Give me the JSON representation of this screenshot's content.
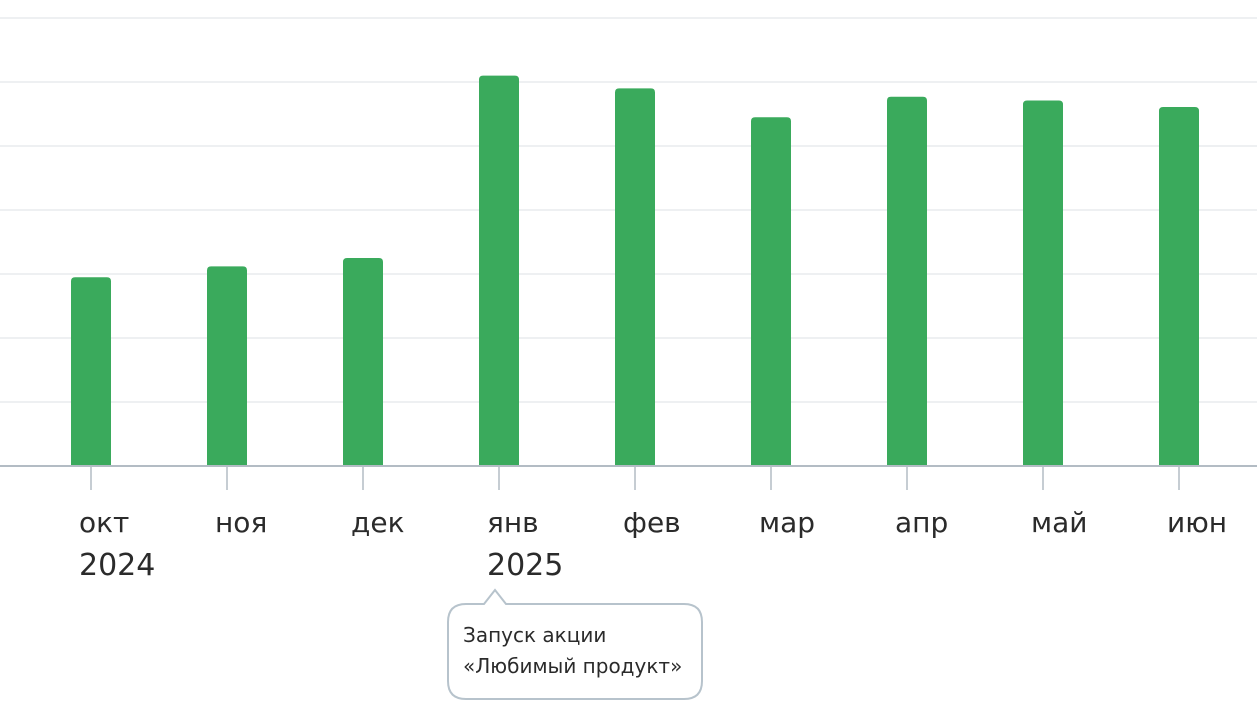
{
  "chart_data": {
    "type": "bar",
    "categories": [
      "окт",
      "ноя",
      "дек",
      "янв",
      "фев",
      "мар",
      "апр",
      "май",
      "июн"
    ],
    "years": [
      {
        "label": "2024",
        "at_category": 0
      },
      {
        "label": "2025",
        "at_category": 3
      }
    ],
    "values": [
      2.95,
      3.12,
      3.25,
      6.1,
      5.9,
      5.45,
      5.77,
      5.71,
      5.61
    ],
    "ylim": [
      0,
      7
    ],
    "grid": true,
    "bar_color": "#3aaa5c",
    "annotation": {
      "category": "янв",
      "lines": [
        "Запуск акции",
        "«Любимый продукт»"
      ]
    },
    "title": "",
    "xlabel": "",
    "ylabel": ""
  }
}
